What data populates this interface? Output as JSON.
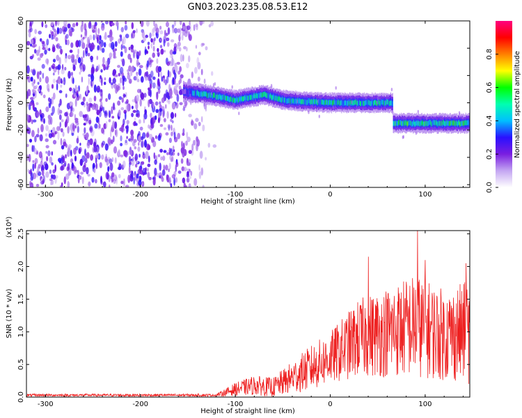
{
  "title": "GN03.2023.235.08.53.E12",
  "chart_data": [
    {
      "type": "heatmap",
      "xlabel": "Height of straight line (km)",
      "ylabel": "Frequency (Hz)",
      "xlim": [
        -320,
        147
      ],
      "ylim": [
        -62,
        60
      ],
      "xticks": [
        -300,
        -200,
        -100,
        0,
        100
      ],
      "xtick_labels": [
        "-300",
        "-200",
        "-100",
        "0",
        "100"
      ],
      "yticks": [
        60,
        40,
        20,
        0,
        -20,
        -40,
        -60
      ],
      "ytick_labels": [
        "60",
        "40",
        "20",
        "0",
        "-20",
        "-40",
        "-60"
      ],
      "colorbar": {
        "label": "Normalized spectral amplitude",
        "range": [
          0,
          1
        ],
        "ticks": [
          0.0,
          0.2,
          0.4,
          0.6,
          0.8
        ],
        "tick_labels": [
          "0.0",
          "0.2",
          "0.4",
          "0.6",
          "0.8"
        ],
        "colormap": [
          "#ffffff",
          "#c4a6f2",
          "#7a1ee0",
          "#2a10ff",
          "#00bfff",
          "#00ffb0",
          "#00ff00",
          "#ffff00",
          "#ff8000",
          "#ff0000",
          "#ff0080"
        ]
      },
      "features": [
        {
          "name": "noise",
          "x_range": [
            -320,
            -130
          ],
          "f_range": [
            -62,
            60
          ],
          "level": 0.25
        },
        {
          "name": "band",
          "x_range": [
            -155,
            66
          ],
          "freq_trend": [
            [
              -155,
              8
            ],
            [
              -130,
              6
            ],
            [
              -100,
              2
            ],
            [
              -70,
              6
            ],
            [
              -50,
              2
            ],
            [
              -30,
              1
            ],
            [
              0,
              0
            ],
            [
              66,
              0
            ]
          ],
          "level": 0.55
        },
        {
          "name": "band",
          "x_range": [
            66,
            147
          ],
          "freq_trend": [
            [
              66,
              -15
            ],
            [
              147,
              -15
            ]
          ],
          "level": 0.6
        }
      ]
    },
    {
      "type": "line",
      "xlabel": "Height of straight line (km)",
      "ylabel": "SNR (10 * v/v)",
      "scale_label": "(x10⁴)",
      "xlim": [
        -320,
        147
      ],
      "ylim": [
        0,
        2.55
      ],
      "xticks": [
        -300,
        -200,
        -100,
        0,
        100
      ],
      "xtick_labels": [
        "-300",
        "-200",
        "-100",
        "0",
        "100"
      ],
      "yticks": [
        0.0,
        0.5,
        1.0,
        1.5,
        2.0,
        2.5
      ],
      "ytick_labels": [
        "0.0",
        "0.5",
        "1.0",
        "1.5",
        "2.0",
        "2.5"
      ],
      "line_color": "#ee2020",
      "envelope": [
        {
          "x": -320,
          "mean": 0.03,
          "spread": 0.02
        },
        {
          "x": -120,
          "mean": 0.03,
          "spread": 0.02
        },
        {
          "x": -100,
          "mean": 0.12,
          "spread": 0.1
        },
        {
          "x": -80,
          "mean": 0.18,
          "spread": 0.15
        },
        {
          "x": -60,
          "mean": 0.15,
          "spread": 0.15
        },
        {
          "x": -40,
          "mean": 0.3,
          "spread": 0.25
        },
        {
          "x": -20,
          "mean": 0.45,
          "spread": 0.35
        },
        {
          "x": 0,
          "mean": 0.6,
          "spread": 0.4
        },
        {
          "x": 30,
          "mean": 0.9,
          "spread": 0.6
        },
        {
          "x": 60,
          "mean": 1.0,
          "spread": 0.7
        },
        {
          "x": 90,
          "mean": 1.1,
          "spread": 0.8
        },
        {
          "x": 120,
          "mean": 0.95,
          "spread": 0.7
        },
        {
          "x": 147,
          "mean": 1.0,
          "spread": 0.8
        }
      ],
      "peaks": [
        {
          "x": 92,
          "y": 2.55
        },
        {
          "x": 40,
          "y": 2.15
        },
        {
          "x": 100,
          "y": 2.1
        },
        {
          "x": 143,
          "y": 2.05
        }
      ]
    }
  ]
}
